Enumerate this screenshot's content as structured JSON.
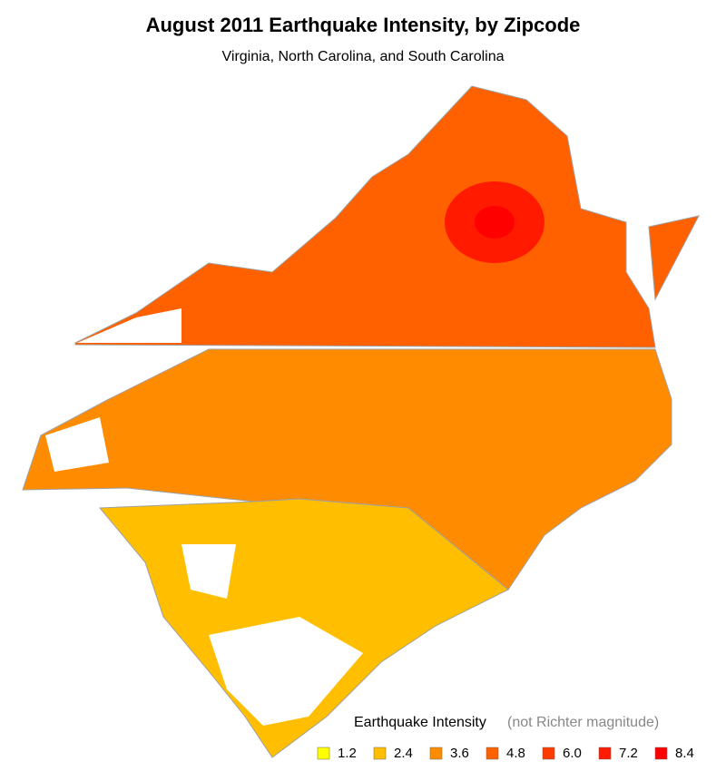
{
  "chart_data": {
    "type": "map",
    "title": "August 2011 Earthquake Intensity, by Zipcode",
    "subtitle": "Virginia, North Carolina, and South Carolina",
    "legend_title": "Earthquake Intensity",
    "legend_note": "(not Richter magnitude)",
    "legend": [
      {
        "value": 1.2,
        "color": "#ffff00"
      },
      {
        "value": 2.4,
        "color": "#ffbf00"
      },
      {
        "value": 3.6,
        "color": "#ff8c00"
      },
      {
        "value": 4.8,
        "color": "#ff6000"
      },
      {
        "value": 6,
        "label": "6.0",
        "color": "#ff3c00"
      },
      {
        "value": 7.2,
        "color": "#ff1a00"
      },
      {
        "value": 8.4,
        "color": "#ff0000"
      }
    ]
  }
}
